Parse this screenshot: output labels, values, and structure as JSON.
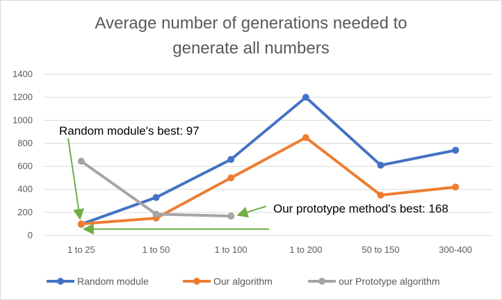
{
  "chart_data": {
    "type": "line",
    "title_lines": [
      "Average number of generations needed to",
      "generate all numbers"
    ],
    "categories": [
      "1 to 25",
      "1 to 50",
      "1 to 100",
      "1 to 200",
      "50 to 150",
      "300-400"
    ],
    "ylim": [
      0,
      1400
    ],
    "yticks": [
      0,
      200,
      400,
      600,
      800,
      1000,
      1200,
      1400
    ],
    "grid": true,
    "legend_position": "bottom",
    "series": [
      {
        "name": "Random module",
        "color": "#4472c4",
        "values": [
          97,
          330,
          660,
          1200,
          610,
          740
        ]
      },
      {
        "name": "Our algorithm",
        "color": "#ed7d31",
        "values": [
          100,
          150,
          500,
          850,
          350,
          420
        ]
      },
      {
        "name": "our Prototype algorithm",
        "color": "#a5a5a5",
        "values": [
          645,
          185,
          168,
          null,
          null,
          null
        ]
      }
    ],
    "annotations": [
      {
        "text": "Random module's best: 97",
        "color": "#70ad47"
      },
      {
        "text": "Our prototype method's best: 168",
        "color": "#70ad47"
      }
    ]
  }
}
